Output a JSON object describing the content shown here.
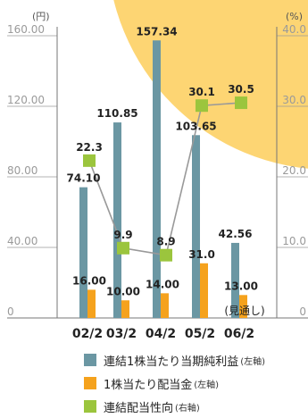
{
  "chart_data": {
    "type": "bar",
    "categories": [
      "02/2",
      "03/2",
      "04/2",
      "05/2",
      "06/2"
    ],
    "forecast_note": "(見通し)",
    "left_axis": {
      "unit": "(円)",
      "ticks": [
        "0",
        "40.00",
        "80.00",
        "120.00",
        "160.00"
      ],
      "ylim": [
        0,
        160
      ]
    },
    "right_axis": {
      "unit": "(%)",
      "ticks": [
        "0",
        "10.0",
        "20.0",
        "30.0",
        "40.0"
      ],
      "ylim": [
        0,
        40
      ]
    },
    "series": [
      {
        "name": "連結1株当たり当期純利益",
        "axis_note": "(左軸)",
        "type": "bar",
        "axis": "left",
        "color": "#6b97a3",
        "values": [
          74.1,
          110.85,
          157.34,
          103.65,
          42.56
        ],
        "labels": [
          "74.10",
          "110.85",
          "157.34",
          "103.65",
          "42.56"
        ]
      },
      {
        "name": "1株当たり配当金",
        "axis_note": "(左軸)",
        "type": "bar",
        "axis": "left",
        "color": "#f5a21d",
        "values": [
          16.0,
          10.0,
          14.0,
          31.0,
          13.0
        ],
        "labels": [
          "16.00",
          "10.00",
          "14.00",
          "31.0",
          "13.00"
        ]
      },
      {
        "name": "連結配当性向",
        "axis_note": "(右軸)",
        "type": "line",
        "axis": "right",
        "color": "#9bc53d",
        "line_color": "#999999",
        "values": [
          22.3,
          9.9,
          8.9,
          30.1,
          30.5
        ],
        "labels": [
          "22.3",
          "9.9",
          "8.9",
          "30.1",
          "30.5"
        ]
      }
    ],
    "background_color": "#fdd573",
    "grid": true,
    "legend_position": "bottom"
  }
}
